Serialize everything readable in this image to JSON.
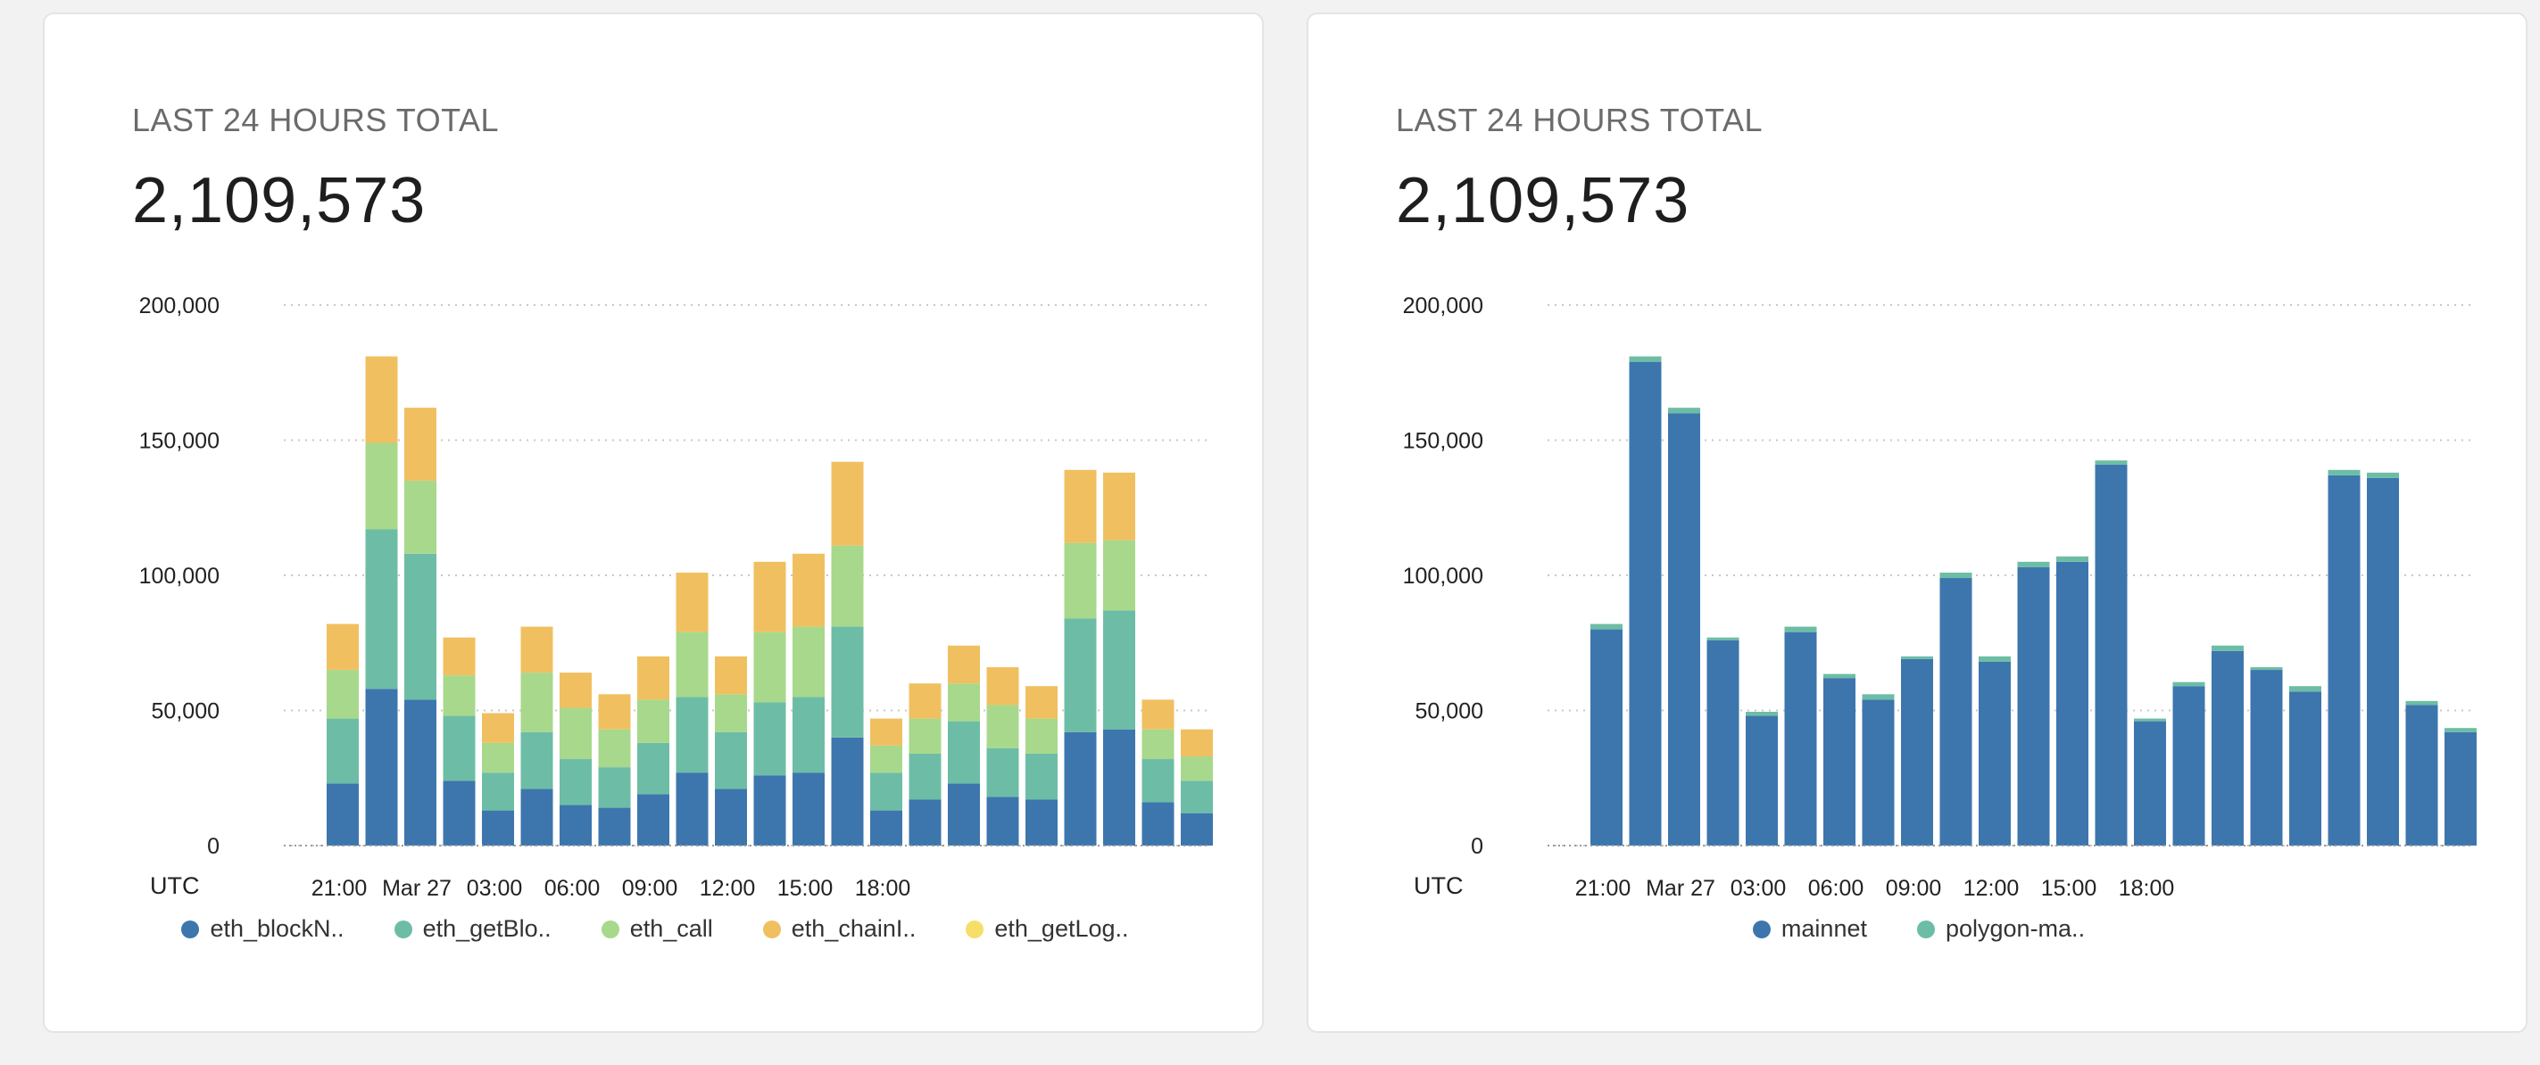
{
  "cards": [
    {
      "label": "LAST 24 HOURS TOTAL",
      "value": "2,109,573",
      "legend": [
        {
          "label": "eth_blockN..",
          "color": "#3d76ad"
        },
        {
          "label": "eth_getBlo..",
          "color": "#6dbda6"
        },
        {
          "label": "eth_call",
          "color": "#a8d88c"
        },
        {
          "label": "eth_chainI..",
          "color": "#f0c060"
        },
        {
          "label": "eth_getLog..",
          "color": "#f7de69"
        }
      ]
    },
    {
      "label": "LAST 24 HOURS TOTAL",
      "value": "2,109,573",
      "legend": [
        {
          "label": "mainnet",
          "color": "#3d76ad"
        },
        {
          "label": "polygon-ma..",
          "color": "#6dbda6"
        }
      ]
    }
  ],
  "chart_data": [
    {
      "type": "bar",
      "stacked": true,
      "title": "LAST 24 HOURS TOTAL",
      "xlabel": "UTC",
      "ylim": [
        0,
        200000
      ],
      "yticks": [
        "0",
        "50,000",
        "100,000",
        "150,000",
        "200,000"
      ],
      "xticks": [
        "21:00",
        "Mar 27",
        "03:00",
        "06:00",
        "09:00",
        "12:00",
        "15:00",
        "18:00"
      ],
      "xtick_bar_index": [
        0,
        2,
        4,
        6,
        8,
        10,
        12,
        14
      ],
      "series": [
        {
          "name": "eth_blockN..",
          "color": "#3d76ad",
          "values": [
            23000,
            58000,
            54000,
            24000,
            13000,
            21000,
            15000,
            14000,
            19000,
            27000,
            21000,
            26000,
            27000,
            40000,
            13000,
            17000,
            23000,
            18000,
            17000,
            42000,
            43000,
            16000,
            12000
          ]
        },
        {
          "name": "eth_getBlo..",
          "color": "#6dbda6",
          "values": [
            24000,
            59000,
            54000,
            24000,
            14000,
            21000,
            17000,
            15000,
            19000,
            28000,
            21000,
            27000,
            28000,
            41000,
            14000,
            17000,
            23000,
            18000,
            17000,
            42000,
            44000,
            16000,
            12000
          ]
        },
        {
          "name": "eth_call",
          "color": "#a8d88c",
          "values": [
            18000,
            32000,
            27000,
            15000,
            11000,
            22000,
            19000,
            14000,
            16000,
            24000,
            14000,
            26000,
            26000,
            30000,
            10000,
            13000,
            14000,
            16000,
            13000,
            28000,
            26000,
            11000,
            9000
          ]
        },
        {
          "name": "eth_chainI..",
          "color": "#f0c060",
          "values": [
            17000,
            32000,
            27000,
            14000,
            11000,
            17000,
            13000,
            13000,
            16000,
            22000,
            14000,
            26000,
            27000,
            31000,
            10000,
            13000,
            14000,
            14000,
            12000,
            27000,
            25000,
            11000,
            10000
          ]
        },
        {
          "name": "eth_getLog..",
          "color": "#f7de69",
          "values": [
            0,
            0,
            0,
            0,
            0,
            0,
            0,
            0,
            0,
            0,
            0,
            0,
            0,
            0,
            0,
            0,
            0,
            0,
            0,
            0,
            0,
            0,
            0
          ]
        }
      ]
    },
    {
      "type": "bar",
      "stacked": true,
      "title": "LAST 24 HOURS TOTAL",
      "xlabel": "UTC",
      "ylim": [
        0,
        200000
      ],
      "yticks": [
        "0",
        "50,000",
        "100,000",
        "150,000",
        "200,000"
      ],
      "xticks": [
        "21:00",
        "Mar 27",
        "03:00",
        "06:00",
        "09:00",
        "12:00",
        "15:00",
        "18:00"
      ],
      "xtick_bar_index": [
        0,
        2,
        4,
        6,
        8,
        10,
        12,
        14
      ],
      "series": [
        {
          "name": "mainnet",
          "color": "#3d76ad",
          "values": [
            80000,
            179000,
            160000,
            76000,
            48000,
            79000,
            62000,
            54000,
            69000,
            99000,
            68000,
            103000,
            105000,
            141000,
            46000,
            59000,
            72000,
            65000,
            57000,
            137000,
            136000,
            52000,
            42000
          ]
        },
        {
          "name": "polygon-ma..",
          "color": "#6dbda6",
          "values": [
            2000,
            2000,
            2000,
            1000,
            1500,
            2000,
            1500,
            2000,
            1000,
            2000,
            2000,
            2000,
            2000,
            1500,
            1000,
            1500,
            2000,
            1000,
            2000,
            2000,
            2000,
            1500,
            1500
          ]
        }
      ]
    }
  ]
}
